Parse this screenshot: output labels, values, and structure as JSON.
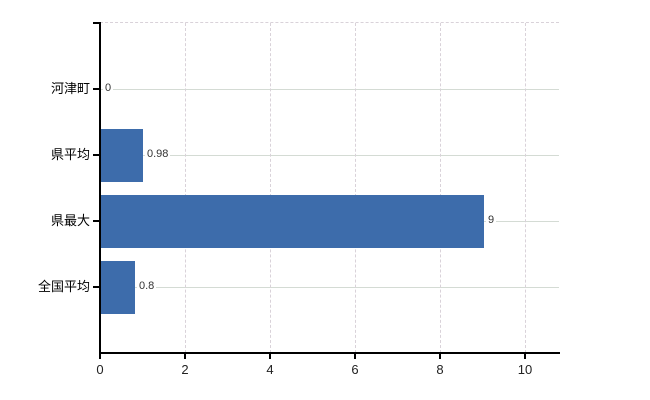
{
  "chart_data": {
    "type": "bar",
    "orientation": "horizontal",
    "title": "",
    "xlabel": "",
    "ylabel": "",
    "legend": "none",
    "grid": "on",
    "categories": [
      "河津町",
      "県平均",
      "県最大",
      "全国平均"
    ],
    "values": [
      0,
      0.98,
      9,
      0.8
    ],
    "value_labels": [
      "0",
      "0.98",
      "9",
      "0.8"
    ],
    "x_ticks": [
      0,
      2,
      4,
      6,
      8,
      10
    ],
    "x_tick_labels": [
      "0",
      "2",
      "4",
      "6",
      "8",
      "10"
    ],
    "xlim": [
      0,
      10.8
    ],
    "gridline_style": {
      "vertical": "dashed",
      "horizontal": "solid",
      "plot_top_border": "dashed"
    },
    "colors": {
      "bar": "#3d6cab",
      "axis": "#000000",
      "h_gridline": "#d4dbd4",
      "v_gridline": "#d9d2d9",
      "category_label": "#000000",
      "value_label": "#333333",
      "tick_label": "#222222",
      "background": "#ffffff"
    }
  }
}
